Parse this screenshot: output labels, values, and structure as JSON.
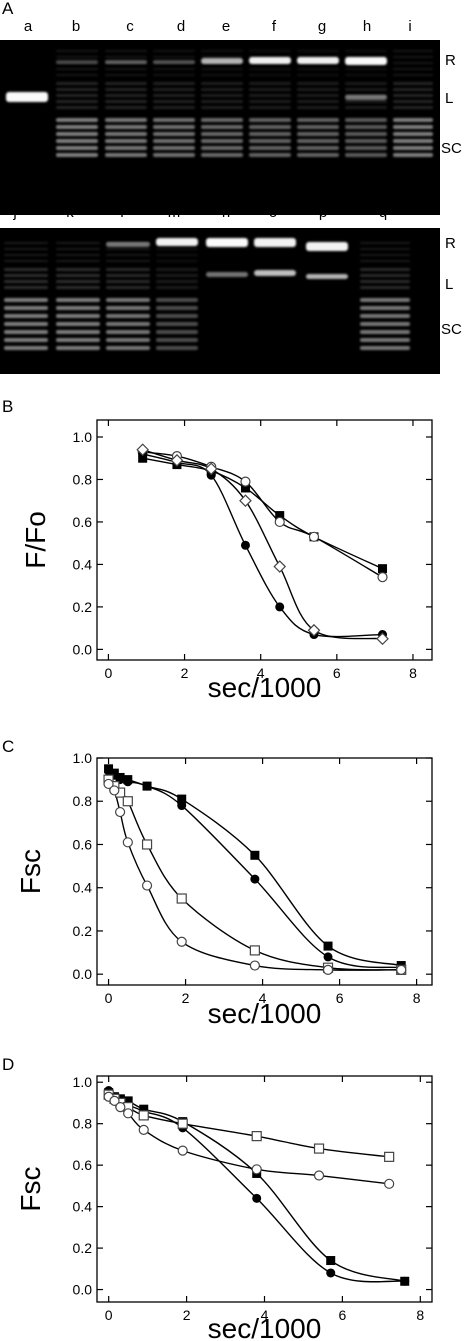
{
  "panels": {
    "A": "A",
    "B": "B",
    "C": "C",
    "D": "D"
  },
  "gel_top": {
    "lanes": [
      "a",
      "b",
      "c",
      "d",
      "e",
      "f",
      "g",
      "h",
      "i"
    ],
    "band_labels": [
      "R",
      "L",
      "SC"
    ]
  },
  "gel_bottom": {
    "lanes": [
      "j",
      "k",
      "l",
      "m",
      "n",
      "o",
      "p",
      "q"
    ],
    "band_labels": [
      "R",
      "L",
      "SC"
    ]
  },
  "chart_data": [
    {
      "panel": "B",
      "type": "scatter",
      "xlabel": "sec/1000",
      "ylabel": "F/Fo",
      "xlim": [
        -0.3,
        8.5
      ],
      "ylim": [
        -0.05,
        1.08
      ],
      "xticks": [
        0,
        2,
        4,
        6,
        8
      ],
      "yticks": [
        0.0,
        0.2,
        0.4,
        0.6,
        0.8,
        1.0
      ],
      "series": [
        {
          "marker": "filled-square",
          "x": [
            0.9,
            1.8,
            2.7,
            3.6,
            4.5,
            5.4,
            7.2
          ],
          "y": [
            0.9,
            0.87,
            0.84,
            0.76,
            0.63,
            0.53,
            0.38
          ]
        },
        {
          "marker": "open-circle",
          "x": [
            0.9,
            1.8,
            2.7,
            3.6,
            4.5,
            5.4,
            7.2
          ],
          "y": [
            0.93,
            0.91,
            0.86,
            0.79,
            0.6,
            0.53,
            0.34
          ]
        },
        {
          "marker": "filled-circle",
          "x": [
            0.9,
            1.8,
            2.7,
            3.6,
            4.5,
            5.4,
            7.2
          ],
          "y": [
            0.92,
            0.88,
            0.82,
            0.49,
            0.2,
            0.07,
            0.07
          ]
        },
        {
          "marker": "open-diamond",
          "x": [
            0.9,
            1.8,
            2.7,
            3.6,
            4.5,
            5.4,
            7.2
          ],
          "y": [
            0.94,
            0.89,
            0.85,
            0.7,
            0.39,
            0.09,
            0.05
          ]
        }
      ]
    },
    {
      "panel": "C",
      "type": "scatter",
      "xlabel": "sec/1000",
      "ylabel": "Fsc",
      "xlim": [
        -0.3,
        8.4
      ],
      "ylim": [
        -0.05,
        1.0
      ],
      "xticks": [
        0,
        2,
        4,
        6,
        8
      ],
      "yticks": [
        0.0,
        0.2,
        0.4,
        0.6,
        0.8,
        1.0
      ],
      "series": [
        {
          "marker": "filled-square",
          "x": [
            0,
            0.15,
            0.3,
            0.5,
            1.0,
            1.9,
            3.8,
            5.7,
            7.6
          ],
          "y": [
            0.95,
            0.93,
            0.91,
            0.9,
            0.87,
            0.81,
            0.55,
            0.13,
            0.04
          ]
        },
        {
          "marker": "filled-circle",
          "x": [
            0,
            0.15,
            0.3,
            0.5,
            1.0,
            1.9,
            3.8,
            5.7,
            7.6
          ],
          "y": [
            0.94,
            0.92,
            0.9,
            0.89,
            0.87,
            0.78,
            0.44,
            0.08,
            0.03
          ]
        },
        {
          "marker": "open-square",
          "x": [
            0,
            0.15,
            0.3,
            0.5,
            1.0,
            1.9,
            3.8,
            5.7,
            7.6
          ],
          "y": [
            0.9,
            0.87,
            0.84,
            0.8,
            0.6,
            0.35,
            0.11,
            0.03,
            0.02
          ]
        },
        {
          "marker": "open-circle",
          "x": [
            0,
            0.15,
            0.3,
            0.5,
            1.0,
            1.9,
            3.8,
            5.7,
            7.6
          ],
          "y": [
            0.88,
            0.85,
            0.75,
            0.61,
            0.41,
            0.15,
            0.04,
            0.02,
            0.02
          ]
        }
      ]
    },
    {
      "panel": "D",
      "type": "scatter",
      "xlabel": "sec/1000",
      "ylabel": "Fsc",
      "xlim": [
        -0.3,
        8.3
      ],
      "ylim": [
        -0.06,
        1.03
      ],
      "xticks": [
        0,
        2,
        4,
        6,
        8
      ],
      "yticks": [
        0.0,
        0.2,
        0.4,
        0.6,
        0.8,
        1.0
      ],
      "series": [
        {
          "marker": "filled-square",
          "x": [
            0,
            0.15,
            0.3,
            0.5,
            0.9,
            1.9,
            3.8,
            5.7,
            7.6
          ],
          "y": [
            0.95,
            0.93,
            0.92,
            0.91,
            0.87,
            0.81,
            0.56,
            0.14,
            0.04
          ]
        },
        {
          "marker": "filled-circle",
          "x": [
            0,
            0.15,
            0.3,
            0.5,
            0.9,
            1.9,
            3.8,
            5.7,
            7.6
          ],
          "y": [
            0.96,
            0.93,
            0.91,
            0.89,
            0.86,
            0.78,
            0.44,
            0.08,
            0.04
          ]
        },
        {
          "marker": "open-square",
          "x": [
            0,
            0.15,
            0.3,
            0.5,
            0.9,
            1.9,
            3.8,
            5.4,
            7.2
          ],
          "y": [
            0.94,
            0.92,
            0.9,
            0.88,
            0.84,
            0.8,
            0.74,
            0.68,
            0.64
          ]
        },
        {
          "marker": "open-circle",
          "x": [
            0,
            0.15,
            0.3,
            0.5,
            0.9,
            1.9,
            3.8,
            5.4,
            7.2
          ],
          "y": [
            0.93,
            0.91,
            0.88,
            0.85,
            0.77,
            0.67,
            0.58,
            0.55,
            0.51
          ]
        }
      ]
    }
  ]
}
